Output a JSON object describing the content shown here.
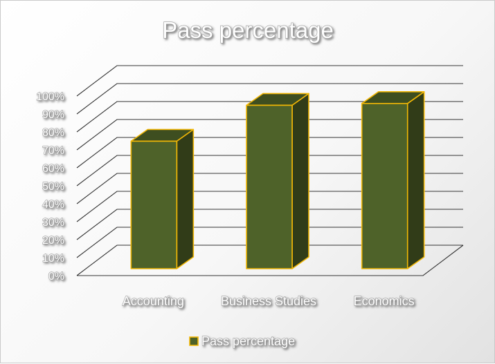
{
  "chart_data": {
    "type": "bar",
    "style": "3d-column",
    "title": "Pass percentage",
    "categories": [
      "Accounting",
      "Business Studies",
      "Economics"
    ],
    "series": [
      {
        "name": "Pass percentage",
        "values": [
          71,
          91,
          92
        ]
      }
    ],
    "ylim": [
      0,
      100
    ],
    "yticks": [
      "0%",
      "10%",
      "20%",
      "30%",
      "40%",
      "50%",
      "60%",
      "70%",
      "80%",
      "90%",
      "100%"
    ],
    "grid": true,
    "legend_position": "bottom",
    "colors": {
      "bar_front": "#4e6229",
      "bar_side": "#313c18",
      "bar_top": "#3e4e20",
      "bar_edge": "#f2b705",
      "gridline": "#333333"
    }
  }
}
